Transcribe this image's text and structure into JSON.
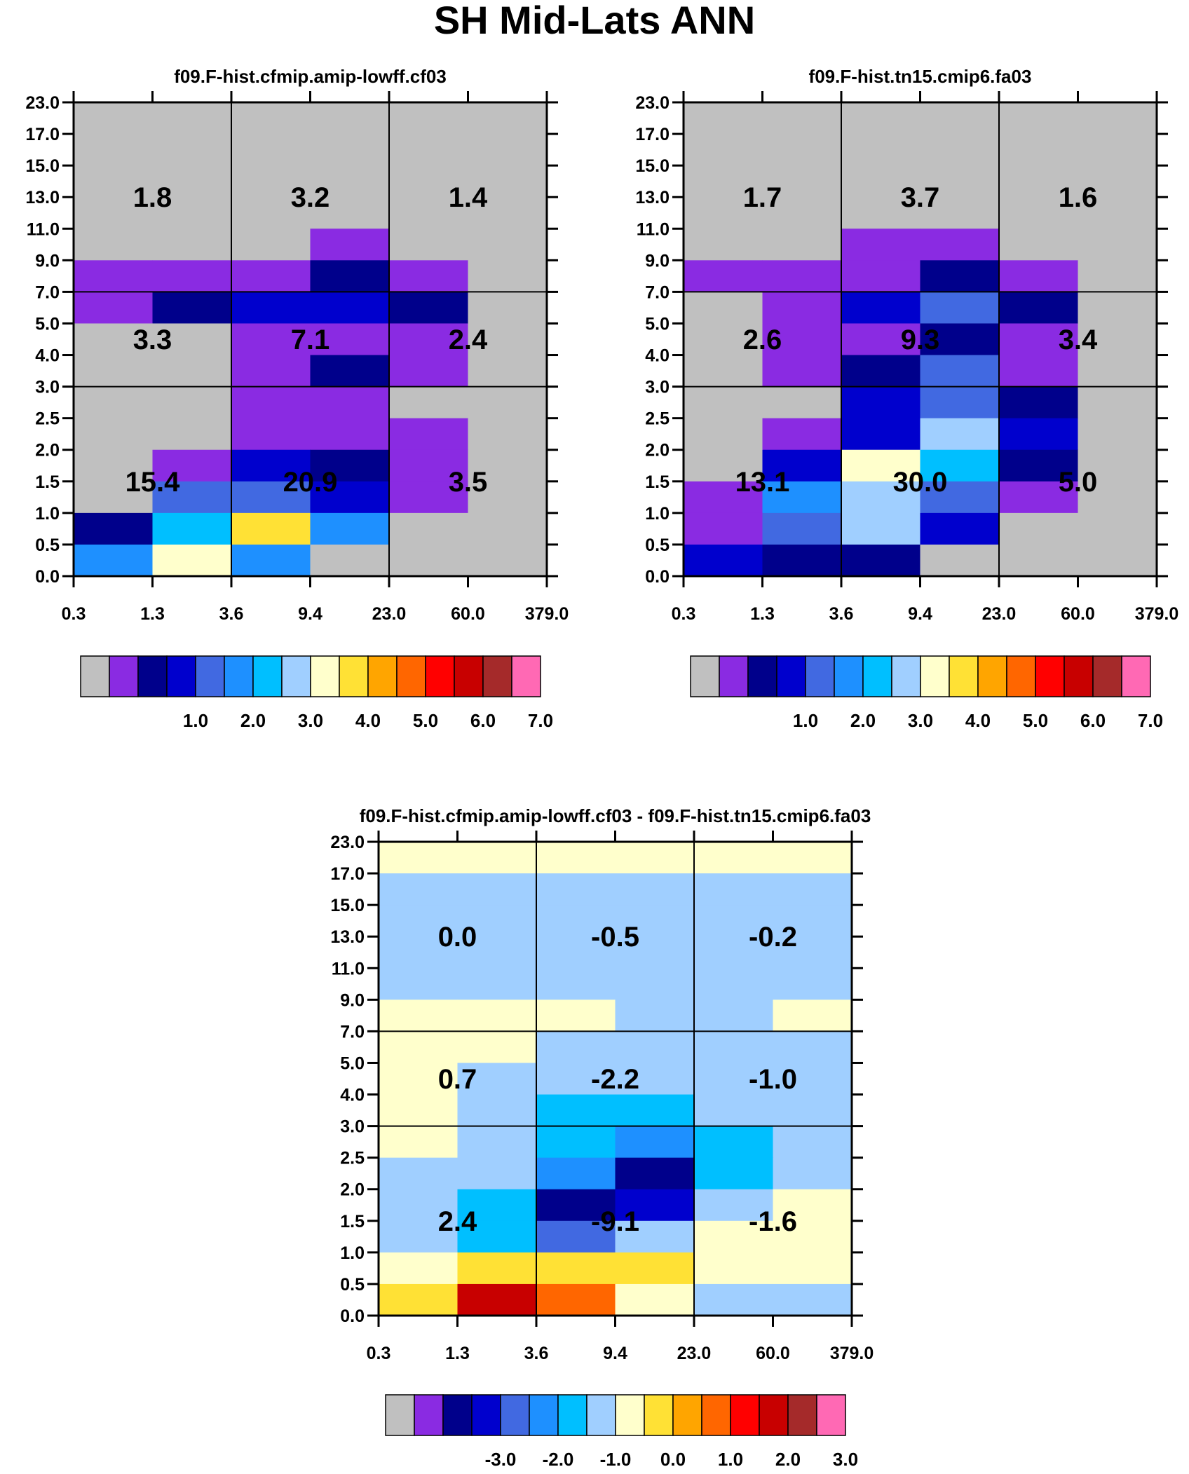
{
  "page_title": "SH Mid-Lats ANN",
  "axes": {
    "x_tick_labels": [
      "0.3",
      "1.3",
      "3.6",
      "9.4",
      "23.0",
      "60.0",
      "379.0"
    ],
    "y_tick_labels": [
      "0.0",
      "0.5",
      "1.0",
      "1.5",
      "2.0",
      "2.5",
      "3.0",
      "4.0",
      "5.0",
      "7.0",
      "9.0",
      "11.0",
      "13.0",
      "15.0",
      "17.0",
      "23.0"
    ]
  },
  "palette": [
    "#c0c0c0",
    "#8a2be2",
    "#00008b",
    "#0000cd",
    "#4169e1",
    "#1e90ff",
    "#00bfff",
    "#a0cfff",
    "#ffffcc",
    "#ffe135",
    "#ffa500",
    "#ff6600",
    "#ff0000",
    "#c80000",
    "#a52a2a",
    "#ff69b4"
  ],
  "chart_data": [
    {
      "type": "heatmap",
      "title": "f09.F-hist.cfmip.amip-lowff.cf03",
      "x_bins": [
        "0.3",
        "1.3",
        "3.6",
        "9.4",
        "23.0",
        "60.0",
        "379.0"
      ],
      "y_bins": [
        "0.0",
        "0.5",
        "1.0",
        "1.5",
        "2.0",
        "2.5",
        "3.0",
        "4.0",
        "5.0",
        "7.0",
        "9.0",
        "11.0",
        "13.0",
        "15.0",
        "17.0",
        "23.0"
      ],
      "cells_color_index_top_to_bottom": [
        [
          0,
          0,
          0,
          0,
          0,
          0
        ],
        [
          0,
          0,
          0,
          0,
          0,
          0
        ],
        [
          0,
          0,
          0,
          0,
          0,
          0
        ],
        [
          0,
          0,
          0,
          0,
          0,
          0
        ],
        [
          0,
          0,
          0,
          1,
          0,
          0
        ],
        [
          1,
          1,
          1,
          2,
          1,
          0
        ],
        [
          1,
          2,
          3,
          3,
          2,
          0
        ],
        [
          0,
          0,
          1,
          1,
          1,
          0
        ],
        [
          0,
          0,
          1,
          2,
          1,
          0
        ],
        [
          0,
          0,
          1,
          1,
          0,
          0
        ],
        [
          0,
          0,
          1,
          1,
          1,
          0
        ],
        [
          0,
          1,
          3,
          2,
          1,
          0
        ],
        [
          0,
          4,
          4,
          3,
          1,
          0
        ],
        [
          2,
          6,
          9,
          5,
          0,
          0
        ],
        [
          5,
          8,
          5,
          0,
          0,
          0
        ]
      ],
      "region_values_top_to_bottom": [
        [
          "1.8",
          "3.2",
          "1.4"
        ],
        [
          "3.3",
          "7.1",
          "2.4"
        ],
        [
          "15.4",
          "20.9",
          "3.5"
        ]
      ],
      "colorbar_labels": [
        "1.0",
        "2.0",
        "3.0",
        "4.0",
        "5.0",
        "6.0",
        "7.0"
      ]
    },
    {
      "type": "heatmap",
      "title": "f09.F-hist.tn15.cmip6.fa03",
      "x_bins": [
        "0.3",
        "1.3",
        "3.6",
        "9.4",
        "23.0",
        "60.0",
        "379.0"
      ],
      "y_bins": [
        "0.0",
        "0.5",
        "1.0",
        "1.5",
        "2.0",
        "2.5",
        "3.0",
        "4.0",
        "5.0",
        "7.0",
        "9.0",
        "11.0",
        "13.0",
        "15.0",
        "17.0",
        "23.0"
      ],
      "cells_color_index_top_to_bottom": [
        [
          0,
          0,
          0,
          0,
          0,
          0
        ],
        [
          0,
          0,
          0,
          0,
          0,
          0
        ],
        [
          0,
          0,
          0,
          0,
          0,
          0
        ],
        [
          0,
          0,
          0,
          0,
          0,
          0
        ],
        [
          0,
          0,
          1,
          1,
          0,
          0
        ],
        [
          1,
          1,
          1,
          2,
          1,
          0
        ],
        [
          0,
          1,
          3,
          4,
          2,
          0
        ],
        [
          0,
          1,
          1,
          2,
          1,
          0
        ],
        [
          0,
          1,
          2,
          4,
          1,
          0
        ],
        [
          0,
          0,
          3,
          4,
          2,
          0
        ],
        [
          0,
          1,
          3,
          7,
          3,
          0
        ],
        [
          0,
          3,
          8,
          6,
          2,
          0
        ],
        [
          1,
          5,
          7,
          4,
          1,
          0
        ],
        [
          1,
          4,
          7,
          3,
          0,
          0
        ],
        [
          3,
          2,
          2,
          0,
          0,
          0
        ]
      ],
      "region_values_top_to_bottom": [
        [
          "1.7",
          "3.7",
          "1.6"
        ],
        [
          "2.6",
          "9.3",
          "3.4"
        ],
        [
          "13.1",
          "30.0",
          "5.0"
        ]
      ],
      "colorbar_labels": [
        "1.0",
        "2.0",
        "3.0",
        "4.0",
        "5.0",
        "6.0",
        "7.0"
      ]
    },
    {
      "type": "heatmap",
      "title": "f09.F-hist.cfmip.amip-lowff.cf03 - f09.F-hist.tn15.cmip6.fa03",
      "x_bins": [
        "0.3",
        "1.3",
        "3.6",
        "9.4",
        "23.0",
        "60.0",
        "379.0"
      ],
      "y_bins": [
        "0.0",
        "0.5",
        "1.0",
        "1.5",
        "2.0",
        "2.5",
        "3.0",
        "4.0",
        "5.0",
        "7.0",
        "9.0",
        "11.0",
        "13.0",
        "15.0",
        "17.0",
        "23.0"
      ],
      "cells_color_index_top_to_bottom": [
        [
          8,
          8,
          8,
          8,
          8,
          8
        ],
        [
          7,
          7,
          7,
          7,
          7,
          7
        ],
        [
          7,
          7,
          7,
          7,
          7,
          7
        ],
        [
          7,
          7,
          7,
          7,
          7,
          7
        ],
        [
          7,
          7,
          7,
          7,
          7,
          7
        ],
        [
          8,
          8,
          8,
          7,
          7,
          8
        ],
        [
          8,
          8,
          7,
          7,
          7,
          7
        ],
        [
          8,
          7,
          7,
          7,
          7,
          7
        ],
        [
          8,
          7,
          6,
          6,
          7,
          7
        ],
        [
          8,
          7,
          6,
          5,
          6,
          7
        ],
        [
          7,
          7,
          5,
          2,
          6,
          7
        ],
        [
          7,
          6,
          2,
          3,
          7,
          8
        ],
        [
          7,
          6,
          4,
          7,
          8,
          8
        ],
        [
          8,
          9,
          9,
          9,
          8,
          8
        ],
        [
          9,
          13,
          11,
          8,
          7,
          7
        ]
      ],
      "region_values_top_to_bottom": [
        [
          "0.0",
          "-0.5",
          "-0.2"
        ],
        [
          "0.7",
          "-2.2",
          "-1.0"
        ],
        [
          "2.4",
          "-9.1",
          "-1.6"
        ]
      ],
      "colorbar_labels": [
        "-3.0",
        "-2.0",
        "-1.0",
        "0.0",
        "1.0",
        "2.0",
        "3.0"
      ]
    }
  ]
}
